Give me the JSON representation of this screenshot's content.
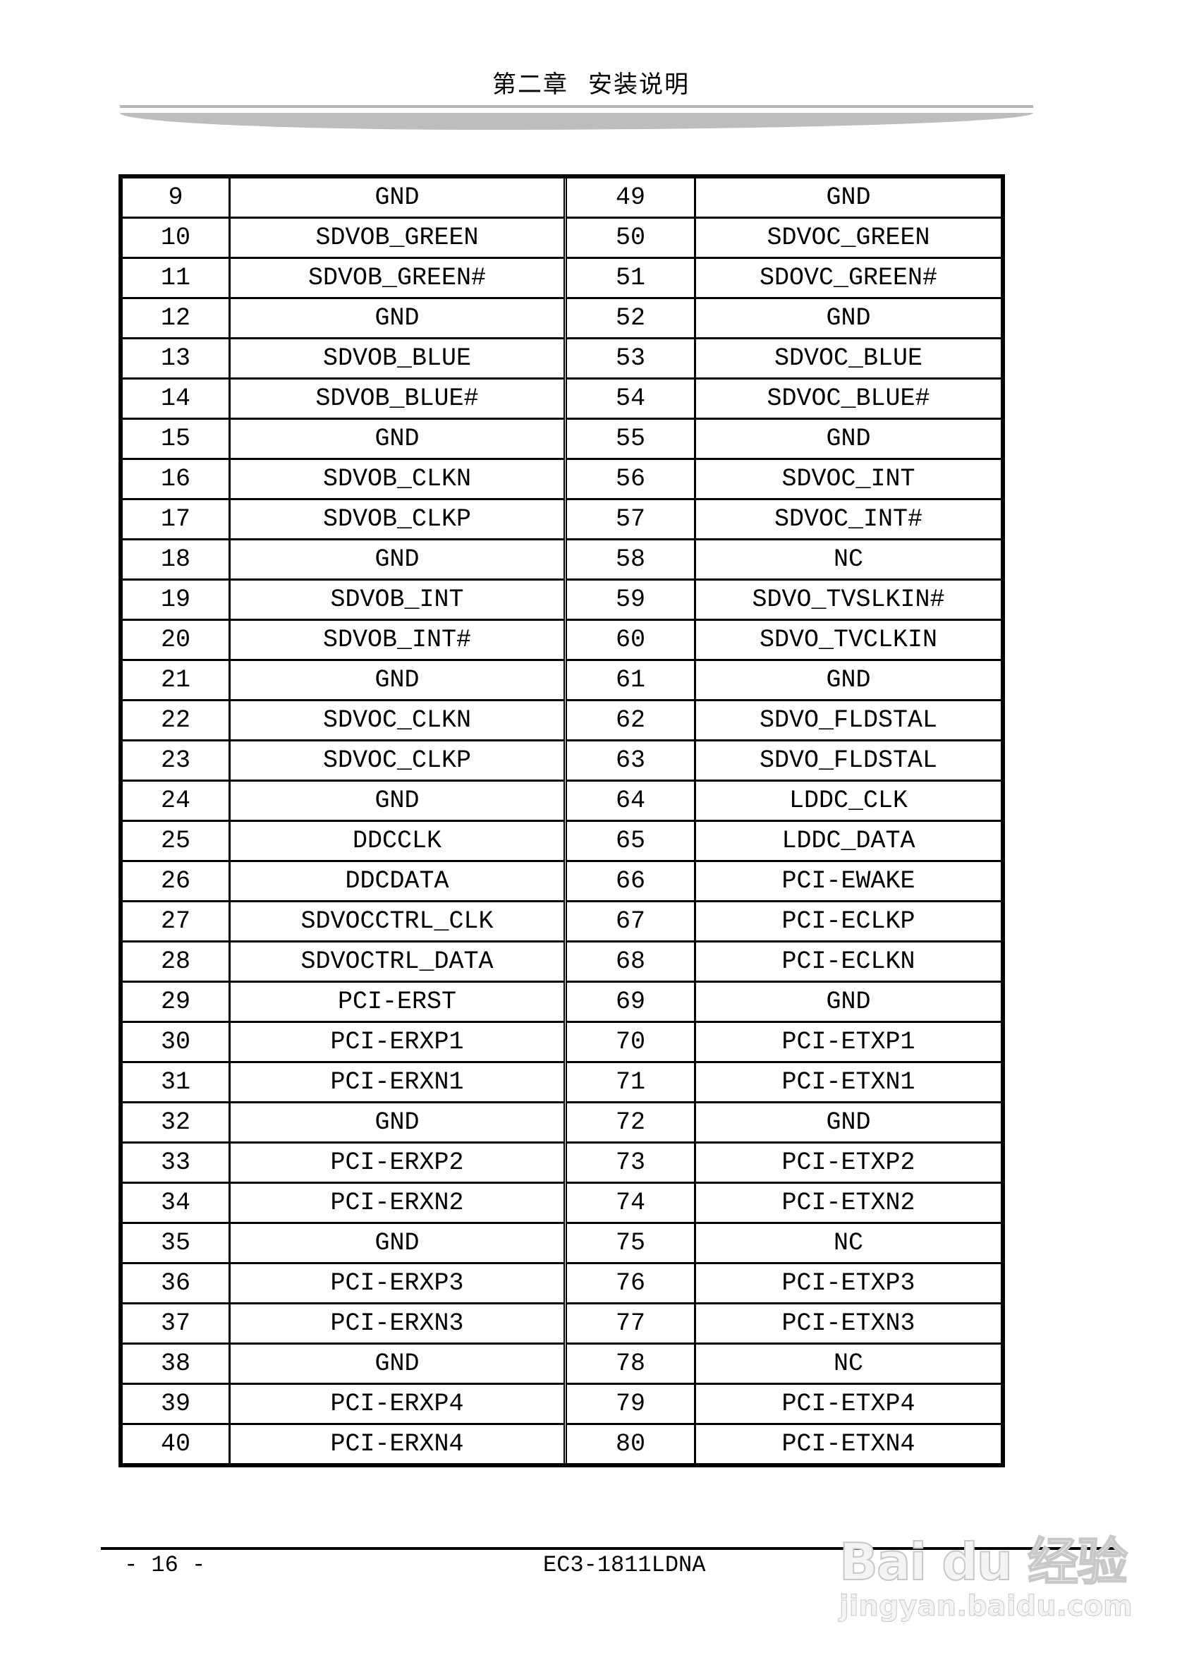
{
  "header": {
    "chapter": "第二章",
    "title": "安装说明"
  },
  "table": {
    "rows": [
      [
        "9",
        "GND",
        "49",
        "GND"
      ],
      [
        "10",
        "SDVOB_GREEN",
        "50",
        "SDVOC_GREEN"
      ],
      [
        "11",
        "SDVOB_GREEN#",
        "51",
        "SDOVC_GREEN#"
      ],
      [
        "12",
        "GND",
        "52",
        "GND"
      ],
      [
        "13",
        "SDVOB_BLUE",
        "53",
        "SDVOC_BLUE"
      ],
      [
        "14",
        "SDVOB_BLUE#",
        "54",
        "SDVOC_BLUE#"
      ],
      [
        "15",
        "GND",
        "55",
        "GND"
      ],
      [
        "16",
        "SDVOB_CLKN",
        "56",
        "SDVOC_INT"
      ],
      [
        "17",
        "SDVOB_CLKP",
        "57",
        "SDVOC_INT#"
      ],
      [
        "18",
        "GND",
        "58",
        "NC"
      ],
      [
        "19",
        "SDVOB_INT",
        "59",
        "SDVO_TVSLKIN#"
      ],
      [
        "20",
        "SDVOB_INT#",
        "60",
        "SDVO_TVCLKIN"
      ],
      [
        "21",
        "GND",
        "61",
        "GND"
      ],
      [
        "22",
        "SDVOC_CLKN",
        "62",
        "SDVO_FLDSTAL"
      ],
      [
        "23",
        "SDVOC_CLKP",
        "63",
        "SDVO_FLDSTAL"
      ],
      [
        "24",
        "GND",
        "64",
        "LDDC_CLK"
      ],
      [
        "25",
        "DDCCLK",
        "65",
        "LDDC_DATA"
      ],
      [
        "26",
        "DDCDATA",
        "66",
        "PCI-EWAKE"
      ],
      [
        "27",
        "SDVOCCTRL_CLK",
        "67",
        "PCI-ECLKP"
      ],
      [
        "28",
        "SDVOCTRL_DATA",
        "68",
        "PCI-ECLKN"
      ],
      [
        "29",
        "PCI-ERST",
        "69",
        "GND"
      ],
      [
        "30",
        "PCI-ERXP1",
        "70",
        "PCI-ETXP1"
      ],
      [
        "31",
        "PCI-ERXN1",
        "71",
        "PCI-ETXN1"
      ],
      [
        "32",
        "GND",
        "72",
        "GND"
      ],
      [
        "33",
        "PCI-ERXP2",
        "73",
        "PCI-ETXP2"
      ],
      [
        "34",
        "PCI-ERXN2",
        "74",
        "PCI-ETXN2"
      ],
      [
        "35",
        "GND",
        "75",
        "NC"
      ],
      [
        "36",
        "PCI-ERXP3",
        "76",
        "PCI-ETXP3"
      ],
      [
        "37",
        "PCI-ERXN3",
        "77",
        "PCI-ETXN3"
      ],
      [
        "38",
        "GND",
        "78",
        "NC"
      ],
      [
        "39",
        "PCI-ERXP4",
        "79",
        "PCI-ETXP4"
      ],
      [
        "40",
        "PCI-ERXN4",
        "80",
        "PCI-ETXN4"
      ]
    ]
  },
  "footer": {
    "page": "- 16 -",
    "model": "EC3-1811LDNA"
  },
  "watermark": {
    "brand": "Bai du 经验",
    "url": "jingyan.baidu.com"
  }
}
